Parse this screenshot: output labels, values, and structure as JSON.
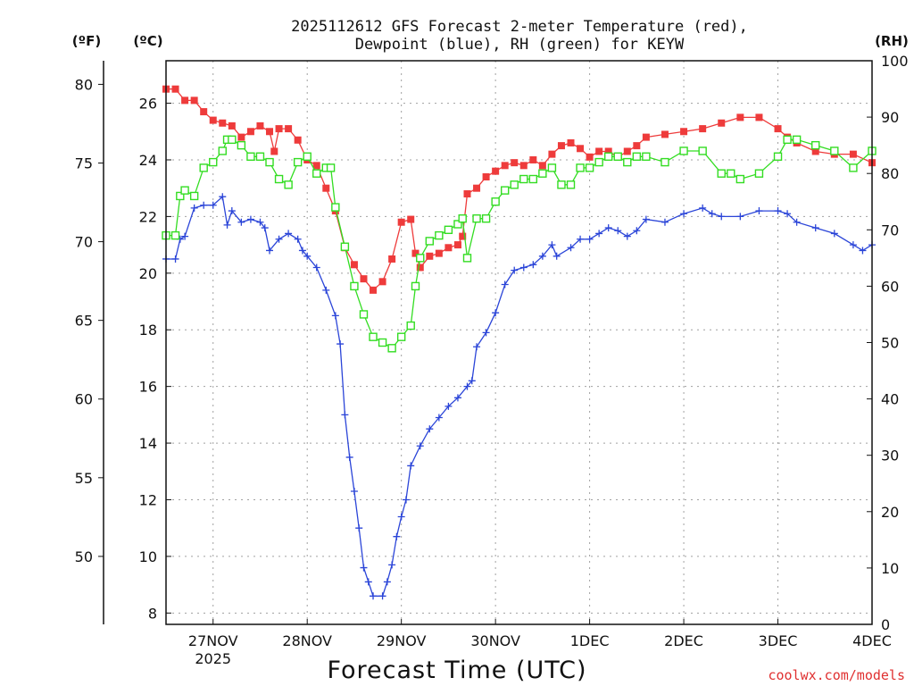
{
  "chart_data": {
    "type": "line",
    "title_line1": "2025112612 GFS Forecast 2-meter Temperature (red),",
    "title_line2": "Dewpoint (blue), RH (green) for KEYW",
    "xlabel": "Forecast Time (UTC)",
    "x_unit": "days since 2025-11-26 00Z",
    "xlim": [
      0.5,
      8.0
    ],
    "x_ticks": [
      {
        "x": 1,
        "label": "27NOV",
        "sub": "2025"
      },
      {
        "x": 2,
        "label": "28NOV",
        "sub": ""
      },
      {
        "x": 3,
        "label": "29NOV",
        "sub": ""
      },
      {
        "x": 4,
        "label": "30NOV",
        "sub": ""
      },
      {
        "x": 5,
        "label": "1DEC",
        "sub": ""
      },
      {
        "x": 6,
        "label": "2DEC",
        "sub": ""
      },
      {
        "x": 7,
        "label": "3DEC",
        "sub": ""
      },
      {
        "x": 8,
        "label": "4DEC",
        "sub": ""
      }
    ],
    "y_left_label": "(ºC)",
    "ylim_c": [
      7.6,
      27.5
    ],
    "y_ticks_c": [
      "8",
      "10",
      "12",
      "14",
      "16",
      "18",
      "20",
      "22",
      "24",
      "26"
    ],
    "y_outer_label": "(ºF)",
    "y_ticks_f": [
      "50",
      "55",
      "60",
      "65",
      "70",
      "75",
      "80"
    ],
    "y_right_label": "(RH)",
    "ylim_rh": [
      0,
      100
    ],
    "y_ticks_rh": [
      "0",
      "10",
      "20",
      "30",
      "40",
      "50",
      "60",
      "70",
      "80",
      "90",
      "100"
    ],
    "grid": true,
    "series": [
      {
        "name": "Temperature",
        "unit": "C",
        "color": "#ee3b3b",
        "marker": "filled-square",
        "points": [
          [
            0.5,
            26.5
          ],
          [
            0.6,
            26.5
          ],
          [
            0.7,
            26.1
          ],
          [
            0.8,
            26.1
          ],
          [
            0.9,
            25.7
          ],
          [
            1.0,
            25.4
          ],
          [
            1.1,
            25.3
          ],
          [
            1.2,
            25.2
          ],
          [
            1.3,
            24.8
          ],
          [
            1.4,
            25.0
          ],
          [
            1.5,
            25.2
          ],
          [
            1.6,
            25.0
          ],
          [
            1.65,
            24.3
          ],
          [
            1.7,
            25.1
          ],
          [
            1.8,
            25.1
          ],
          [
            1.9,
            24.7
          ],
          [
            2.0,
            24.0
          ],
          [
            2.1,
            23.8
          ],
          [
            2.2,
            23.0
          ],
          [
            2.3,
            22.2
          ],
          [
            2.4,
            20.9
          ],
          [
            2.5,
            20.3
          ],
          [
            2.6,
            19.8
          ],
          [
            2.7,
            19.4
          ],
          [
            2.8,
            19.7
          ],
          [
            2.9,
            20.5
          ],
          [
            3.0,
            21.8
          ],
          [
            3.1,
            21.9
          ],
          [
            3.15,
            20.7
          ],
          [
            3.2,
            20.2
          ],
          [
            3.3,
            20.6
          ],
          [
            3.4,
            20.7
          ],
          [
            3.5,
            20.9
          ],
          [
            3.6,
            21.0
          ],
          [
            3.65,
            21.3
          ],
          [
            3.7,
            22.8
          ],
          [
            3.8,
            23.0
          ],
          [
            3.9,
            23.4
          ],
          [
            4.0,
            23.6
          ],
          [
            4.1,
            23.8
          ],
          [
            4.2,
            23.9
          ],
          [
            4.3,
            23.8
          ],
          [
            4.4,
            24.0
          ],
          [
            4.5,
            23.8
          ],
          [
            4.6,
            24.2
          ],
          [
            4.7,
            24.5
          ],
          [
            4.8,
            24.6
          ],
          [
            4.9,
            24.4
          ],
          [
            5.0,
            24.1
          ],
          [
            5.1,
            24.3
          ],
          [
            5.2,
            24.3
          ],
          [
            5.3,
            24.1
          ],
          [
            5.4,
            24.3
          ],
          [
            5.5,
            24.5
          ],
          [
            5.6,
            24.8
          ],
          [
            5.8,
            24.9
          ],
          [
            6.0,
            25.0
          ],
          [
            6.2,
            25.1
          ],
          [
            6.4,
            25.3
          ],
          [
            6.6,
            25.5
          ],
          [
            6.8,
            25.5
          ],
          [
            7.0,
            25.1
          ],
          [
            7.1,
            24.8
          ],
          [
            7.2,
            24.6
          ],
          [
            7.4,
            24.3
          ],
          [
            7.6,
            24.2
          ],
          [
            7.8,
            24.2
          ],
          [
            8.0,
            23.9
          ]
        ]
      },
      {
        "name": "Dewpoint",
        "unit": "C",
        "color": "#2b45d8",
        "marker": "plus",
        "points": [
          [
            0.5,
            20.5
          ],
          [
            0.6,
            20.5
          ],
          [
            0.65,
            21.2
          ],
          [
            0.7,
            21.3
          ],
          [
            0.8,
            22.3
          ],
          [
            0.9,
            22.4
          ],
          [
            1.0,
            22.4
          ],
          [
            1.1,
            22.7
          ],
          [
            1.15,
            21.7
          ],
          [
            1.2,
            22.2
          ],
          [
            1.3,
            21.8
          ],
          [
            1.4,
            21.9
          ],
          [
            1.5,
            21.8
          ],
          [
            1.55,
            21.6
          ],
          [
            1.6,
            20.8
          ],
          [
            1.7,
            21.2
          ],
          [
            1.8,
            21.4
          ],
          [
            1.9,
            21.2
          ],
          [
            1.95,
            20.8
          ],
          [
            2.0,
            20.6
          ],
          [
            2.1,
            20.2
          ],
          [
            2.2,
            19.4
          ],
          [
            2.3,
            18.5
          ],
          [
            2.35,
            17.5
          ],
          [
            2.4,
            15.0
          ],
          [
            2.45,
            13.5
          ],
          [
            2.5,
            12.3
          ],
          [
            2.55,
            11.0
          ],
          [
            2.6,
            9.6
          ],
          [
            2.65,
            9.1
          ],
          [
            2.7,
            8.6
          ],
          [
            2.8,
            8.6
          ],
          [
            2.85,
            9.1
          ],
          [
            2.9,
            9.7
          ],
          [
            2.95,
            10.7
          ],
          [
            3.0,
            11.4
          ],
          [
            3.05,
            12.0
          ],
          [
            3.1,
            13.2
          ],
          [
            3.2,
            13.9
          ],
          [
            3.3,
            14.5
          ],
          [
            3.4,
            14.9
          ],
          [
            3.5,
            15.3
          ],
          [
            3.6,
            15.6
          ],
          [
            3.7,
            16.0
          ],
          [
            3.75,
            16.2
          ],
          [
            3.8,
            17.4
          ],
          [
            3.9,
            17.9
          ],
          [
            4.0,
            18.6
          ],
          [
            4.1,
            19.6
          ],
          [
            4.2,
            20.1
          ],
          [
            4.3,
            20.2
          ],
          [
            4.4,
            20.3
          ],
          [
            4.5,
            20.6
          ],
          [
            4.6,
            21.0
          ],
          [
            4.65,
            20.6
          ],
          [
            4.8,
            20.9
          ],
          [
            4.9,
            21.2
          ],
          [
            5.0,
            21.2
          ],
          [
            5.1,
            21.4
          ],
          [
            5.2,
            21.6
          ],
          [
            5.3,
            21.5
          ],
          [
            5.4,
            21.3
          ],
          [
            5.5,
            21.5
          ],
          [
            5.6,
            21.9
          ],
          [
            5.8,
            21.8
          ],
          [
            6.0,
            22.1
          ],
          [
            6.2,
            22.3
          ],
          [
            6.3,
            22.1
          ],
          [
            6.4,
            22.0
          ],
          [
            6.6,
            22.0
          ],
          [
            6.8,
            22.2
          ],
          [
            7.0,
            22.2
          ],
          [
            7.1,
            22.1
          ],
          [
            7.2,
            21.8
          ],
          [
            7.4,
            21.6
          ],
          [
            7.6,
            21.4
          ],
          [
            7.8,
            21.0
          ],
          [
            7.9,
            20.8
          ],
          [
            8.0,
            21.0
          ]
        ]
      },
      {
        "name": "RH",
        "unit": "%",
        "color": "#33dd22",
        "marker": "open-square",
        "points": [
          [
            0.5,
            69
          ],
          [
            0.6,
            69
          ],
          [
            0.65,
            76
          ],
          [
            0.7,
            77
          ],
          [
            0.8,
            76
          ],
          [
            0.9,
            81
          ],
          [
            1.0,
            82
          ],
          [
            1.1,
            84
          ],
          [
            1.15,
            86
          ],
          [
            1.2,
            86
          ],
          [
            1.3,
            85
          ],
          [
            1.4,
            83
          ],
          [
            1.5,
            83
          ],
          [
            1.6,
            82
          ],
          [
            1.7,
            79
          ],
          [
            1.8,
            78
          ],
          [
            1.9,
            82
          ],
          [
            2.0,
            83
          ],
          [
            2.1,
            80
          ],
          [
            2.2,
            81
          ],
          [
            2.25,
            81
          ],
          [
            2.3,
            74
          ],
          [
            2.4,
            67
          ],
          [
            2.5,
            60
          ],
          [
            2.6,
            55
          ],
          [
            2.7,
            51
          ],
          [
            2.8,
            50
          ],
          [
            2.9,
            49
          ],
          [
            3.0,
            51
          ],
          [
            3.1,
            53
          ],
          [
            3.15,
            60
          ],
          [
            3.2,
            65
          ],
          [
            3.3,
            68
          ],
          [
            3.4,
            69
          ],
          [
            3.5,
            70
          ],
          [
            3.6,
            71
          ],
          [
            3.65,
            72
          ],
          [
            3.7,
            65
          ],
          [
            3.8,
            72
          ],
          [
            3.9,
            72
          ],
          [
            4.0,
            75
          ],
          [
            4.1,
            77
          ],
          [
            4.2,
            78
          ],
          [
            4.3,
            79
          ],
          [
            4.4,
            79
          ],
          [
            4.5,
            80
          ],
          [
            4.6,
            81
          ],
          [
            4.7,
            78
          ],
          [
            4.8,
            78
          ],
          [
            4.9,
            81
          ],
          [
            5.0,
            81
          ],
          [
            5.1,
            82
          ],
          [
            5.2,
            83
          ],
          [
            5.3,
            83
          ],
          [
            5.4,
            82
          ],
          [
            5.5,
            83
          ],
          [
            5.6,
            83
          ],
          [
            5.8,
            82
          ],
          [
            6.0,
            84
          ],
          [
            6.2,
            84
          ],
          [
            6.4,
            80
          ],
          [
            6.5,
            80
          ],
          [
            6.6,
            79
          ],
          [
            6.8,
            80
          ],
          [
            7.0,
            83
          ],
          [
            7.1,
            86
          ],
          [
            7.2,
            86
          ],
          [
            7.4,
            85
          ],
          [
            7.6,
            84
          ],
          [
            7.8,
            81
          ],
          [
            8.0,
            84
          ]
        ]
      }
    ]
  },
  "credit": "coolwx.com/models"
}
